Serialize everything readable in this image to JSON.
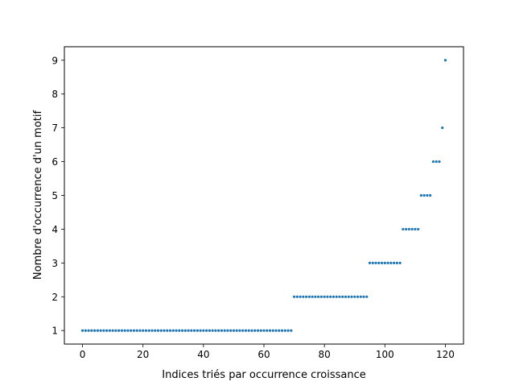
{
  "chart_data": {
    "type": "scatter",
    "xlabel": "Indices triés par occurrence croissance",
    "ylabel": "Nombre d'occurrence d'un motif",
    "xlim": [
      -6,
      126
    ],
    "ylim": [
      0.6,
      9.4
    ],
    "xticks": [
      0,
      20,
      40,
      60,
      80,
      100,
      120
    ],
    "yticks": [
      1,
      2,
      3,
      4,
      5,
      6,
      7,
      8,
      9
    ],
    "grid": false,
    "marker_color": "#1f77b4",
    "series": [
      {
        "groups": [
          {
            "x_from": 0,
            "x_to": 69,
            "y": 1
          },
          {
            "x_from": 70,
            "x_to": 94,
            "y": 2
          },
          {
            "x_from": 95,
            "x_to": 105,
            "y": 3
          },
          {
            "x_from": 106,
            "x_to": 111,
            "y": 4
          },
          {
            "x_from": 112,
            "x_to": 115,
            "y": 5
          },
          {
            "x_from": 116,
            "x_to": 118,
            "y": 6
          },
          {
            "x_from": 119,
            "x_to": 119,
            "y": 7
          },
          {
            "x_from": 120,
            "x_to": 120,
            "y": 9
          }
        ]
      }
    ]
  }
}
